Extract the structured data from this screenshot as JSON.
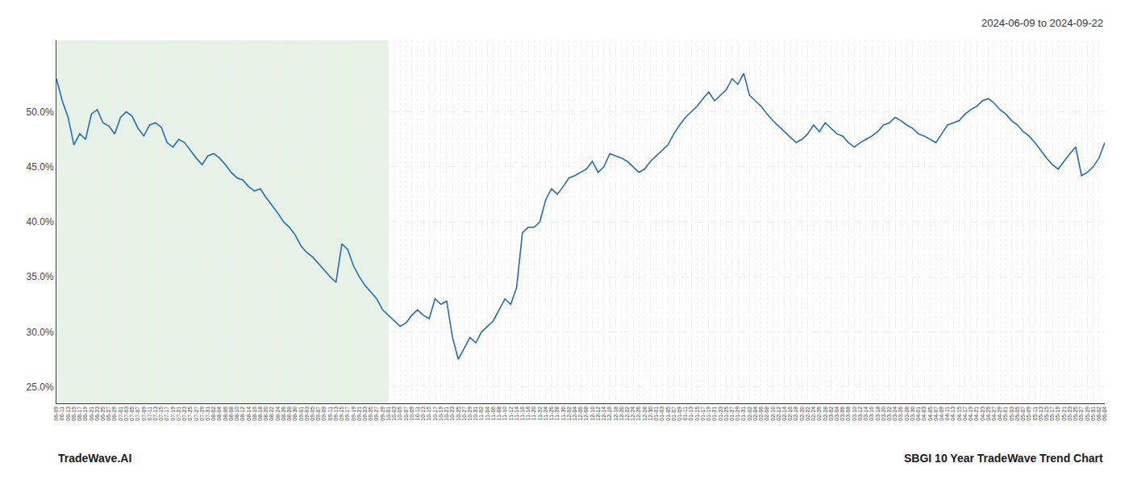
{
  "chart_data": {
    "type": "line",
    "annotations": [
      "2024-06-09 to 2024-09-22",
      "TradeWave.AI",
      "SBGI 10 Year TradeWave Trend Chart"
    ],
    "categories": [
      "06-09",
      "06-11",
      "06-13",
      "06-15",
      "06-17",
      "06-19",
      "06-21",
      "06-23",
      "06-25",
      "06-27",
      "06-29",
      "07-01",
      "07-03",
      "07-05",
      "07-07",
      "07-09",
      "07-11",
      "07-13",
      "07-15",
      "07-17",
      "07-19",
      "07-21",
      "07-23",
      "07-25",
      "07-27",
      "07-29",
      "07-31",
      "08-02",
      "08-04",
      "08-06",
      "08-08",
      "08-10",
      "08-12",
      "08-14",
      "08-16",
      "08-18",
      "08-20",
      "08-22",
      "08-24",
      "08-26",
      "08-28",
      "08-30",
      "09-01",
      "09-03",
      "09-05",
      "09-07",
      "09-09",
      "09-11",
      "09-13",
      "09-15",
      "09-17",
      "09-19",
      "09-21",
      "09-23",
      "09-25",
      "09-27",
      "09-29",
      "10-01",
      "10-03",
      "10-05",
      "10-07",
      "10-09",
      "10-11",
      "10-13",
      "10-15",
      "10-17",
      "10-19",
      "10-21",
      "10-23",
      "10-25",
      "10-27",
      "10-29",
      "10-31",
      "11-02",
      "11-04",
      "11-06",
      "11-08",
      "11-10",
      "11-12",
      "11-14",
      "11-16",
      "11-18",
      "11-20",
      "11-22",
      "11-24",
      "11-26",
      "11-28",
      "11-30",
      "12-02",
      "12-04",
      "12-06",
      "12-08",
      "12-10",
      "12-12",
      "12-14",
      "12-16",
      "12-18",
      "12-20",
      "12-22",
      "12-24",
      "12-26",
      "12-28",
      "12-30",
      "01-01",
      "01-03",
      "01-05",
      "01-07",
      "01-09",
      "01-11",
      "01-13",
      "01-15",
      "01-17",
      "01-19",
      "01-21",
      "01-23",
      "01-25",
      "01-27",
      "01-29",
      "01-31",
      "02-02",
      "02-04",
      "02-06",
      "02-08",
      "02-10",
      "02-12",
      "02-14",
      "02-16",
      "02-18",
      "02-20",
      "02-22",
      "02-24",
      "02-26",
      "02-28",
      "03-02",
      "03-04",
      "03-06",
      "03-08",
      "03-10",
      "03-12",
      "03-14",
      "03-16",
      "03-18",
      "03-20",
      "03-22",
      "03-24",
      "03-26",
      "03-28",
      "03-30",
      "04-01",
      "04-03",
      "04-05",
      "04-07",
      "04-09",
      "04-11",
      "04-13",
      "04-15",
      "04-17",
      "04-19",
      "04-21",
      "04-23",
      "04-25",
      "04-27",
      "04-29",
      "05-01",
      "05-03",
      "05-05",
      "05-07",
      "05-09",
      "05-11",
      "05-13",
      "05-15",
      "05-17",
      "05-19",
      "05-21",
      "05-23",
      "05-25",
      "05-27",
      "05-29",
      "05-31",
      "06-02",
      "06-04"
    ],
    "values": [
      0.53,
      0.51,
      0.495,
      0.47,
      0.48,
      0.475,
      0.498,
      0.502,
      0.49,
      0.487,
      0.48,
      0.495,
      0.5,
      0.496,
      0.485,
      0.478,
      0.488,
      0.49,
      0.486,
      0.472,
      0.468,
      0.475,
      0.472,
      0.465,
      0.458,
      0.452,
      0.46,
      0.462,
      0.458,
      0.452,
      0.445,
      0.44,
      0.438,
      0.432,
      0.428,
      0.43,
      0.422,
      0.415,
      0.408,
      0.4,
      0.395,
      0.388,
      0.378,
      0.372,
      0.368,
      0.362,
      0.356,
      0.35,
      0.345,
      0.38,
      0.375,
      0.36,
      0.35,
      0.342,
      0.336,
      0.33,
      0.32,
      0.315,
      0.31,
      0.305,
      0.308,
      0.315,
      0.32,
      0.315,
      0.312,
      0.33,
      0.325,
      0.328,
      0.295,
      0.275,
      0.285,
      0.295,
      0.29,
      0.3,
      0.305,
      0.31,
      0.32,
      0.33,
      0.325,
      0.34,
      0.39,
      0.395,
      0.395,
      0.4,
      0.42,
      0.43,
      0.425,
      0.432,
      0.44,
      0.442,
      0.445,
      0.448,
      0.455,
      0.445,
      0.45,
      0.462,
      0.46,
      0.458,
      0.455,
      0.45,
      0.445,
      0.448,
      0.455,
      0.46,
      0.465,
      0.47,
      0.48,
      0.488,
      0.495,
      0.5,
      0.505,
      0.512,
      0.518,
      0.51,
      0.515,
      0.52,
      0.53,
      0.525,
      0.535,
      0.515,
      0.51,
      0.505,
      0.498,
      0.492,
      0.487,
      0.482,
      0.477,
      0.472,
      0.475,
      0.48,
      0.488,
      0.482,
      0.49,
      0.485,
      0.48,
      0.478,
      0.472,
      0.468,
      0.472,
      0.475,
      0.478,
      0.482,
      0.488,
      0.49,
      0.495,
      0.492,
      0.488,
      0.485,
      0.48,
      0.478,
      0.475,
      0.472,
      0.48,
      0.488,
      0.49,
      0.492,
      0.498,
      0.502,
      0.505,
      0.51,
      0.512,
      0.508,
      0.502,
      0.498,
      0.492,
      0.488,
      0.482,
      0.478,
      0.472,
      0.465,
      0.458,
      0.452,
      0.448,
      0.455,
      0.462,
      0.468,
      0.442,
      0.445,
      0.45,
      0.458,
      0.472
    ],
    "color": "#1f6eb5",
    "shaded_range": {
      "start": "06-09",
      "end": "10-01",
      "color": "#d6ead6"
    },
    "ylim": [
      0.235,
      0.565
    ],
    "yticks": [
      {
        "value": 0.25,
        "label": "25.0%"
      },
      {
        "value": 0.3,
        "label": "30.0%"
      },
      {
        "value": 0.35,
        "label": "35.0%"
      },
      {
        "value": 0.4,
        "label": "40.0%"
      },
      {
        "value": 0.45,
        "label": "45.0%"
      },
      {
        "value": 0.5,
        "label": "50.0%"
      }
    ],
    "grid": true
  }
}
